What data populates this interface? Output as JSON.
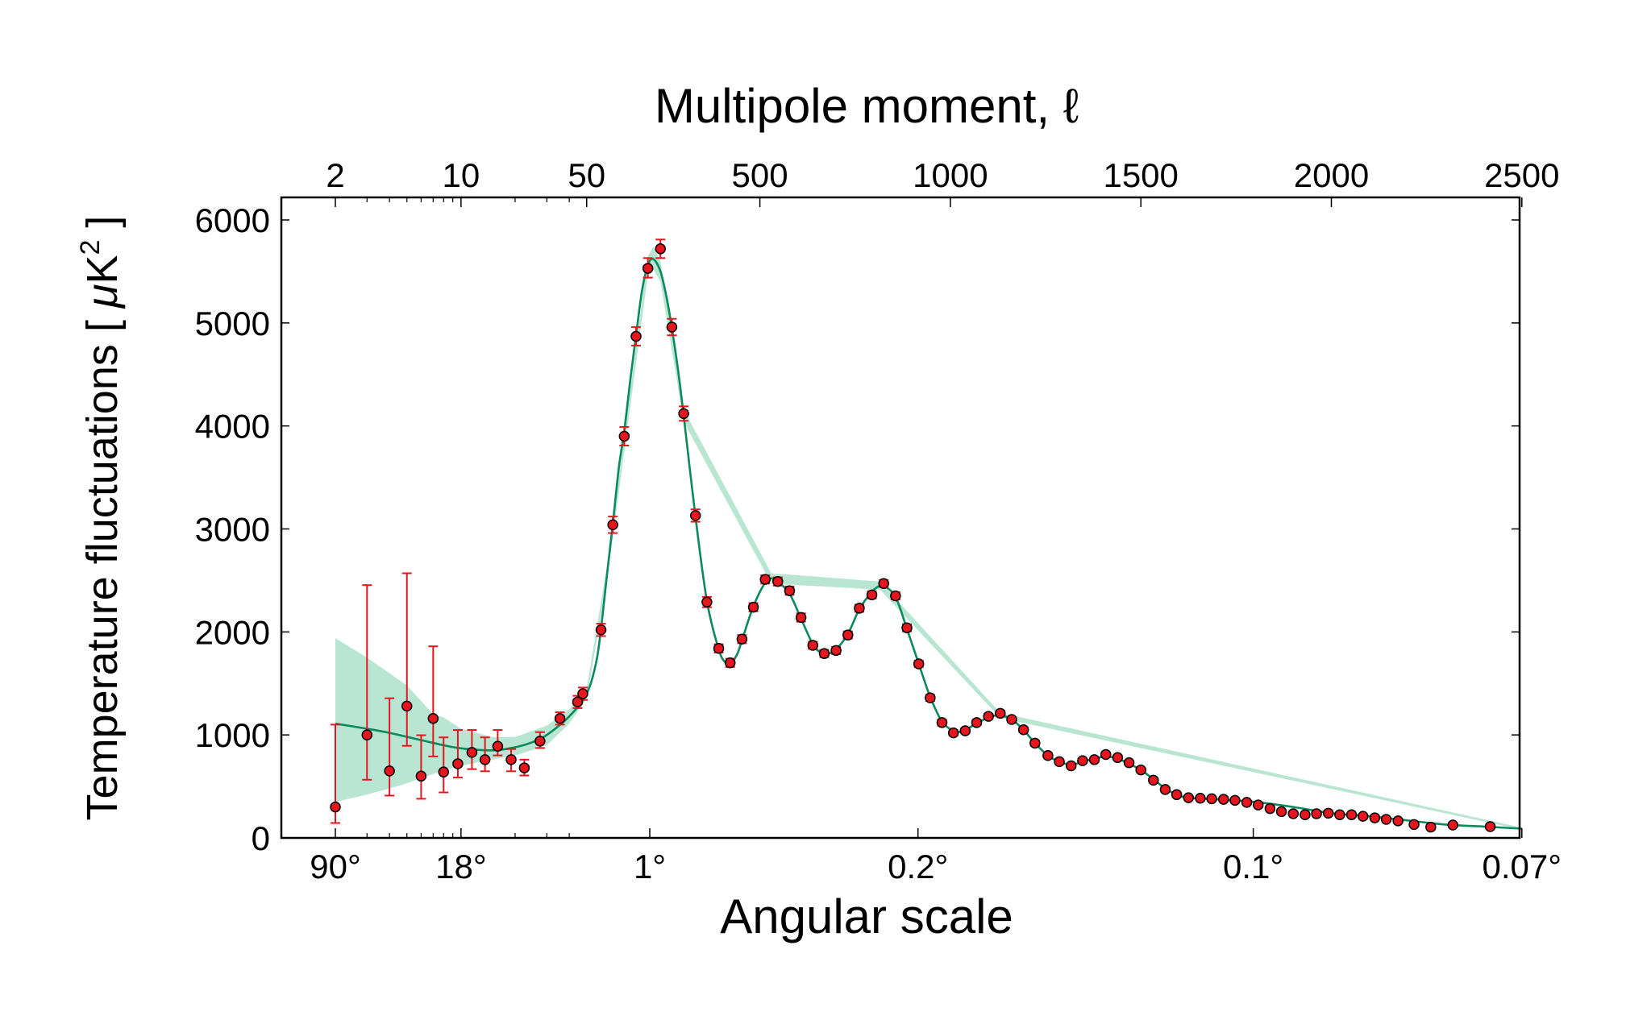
{
  "chart_data": {
    "type": "scatter",
    "title": "",
    "top_axis_label": "Multipole moment, ℓ",
    "xlabel": "Angular scale",
    "ylabel": "Temperature fluctuations [ μK² ]",
    "ylabel_parts": {
      "main": "Temperature fluctuations [ ",
      "mu": "μ",
      "unit": "K",
      "sup": "2",
      "close": " ]"
    },
    "x_scale": "log for ℓ 2–50, linear for ℓ 50–2500",
    "xlim": [
      2,
      2500
    ],
    "ylim": [
      0,
      6000
    ],
    "yticks": [
      0,
      1000,
      2000,
      3000,
      4000,
      5000,
      6000
    ],
    "top_ticks": [
      {
        "l": 2,
        "label": "2"
      },
      {
        "l": 10,
        "label": "10"
      },
      {
        "l": 50,
        "label": "50"
      },
      {
        "l": 500,
        "label": "500"
      },
      {
        "l": 1000,
        "label": "1000"
      },
      {
        "l": 1500,
        "label": "1500"
      },
      {
        "l": 2000,
        "label": "2000"
      },
      {
        "l": 2500,
        "label": "2500"
      }
    ],
    "bottom_ticks": [
      {
        "l": 2,
        "label": "90°"
      },
      {
        "l": 10,
        "label": "18°"
      },
      {
        "l": 211,
        "label": "1°"
      },
      {
        "l": 915,
        "label": "0.2°"
      },
      {
        "l": 1795,
        "label": "0.1°"
      },
      {
        "l": 2500,
        "label": "0.07°"
      }
    ],
    "grid": false,
    "colors": {
      "points": "#e5161e",
      "error_bars": "#e5161e",
      "model": "#0b8a5c",
      "band": "#b9e6d3"
    },
    "points_format": [
      "l",
      "D",
      "err_low",
      "err_high"
    ],
    "points": [
      [
        2,
        300,
        145,
        1100
      ],
      [
        3,
        1000,
        565,
        2455
      ],
      [
        4,
        650,
        411,
        1356
      ],
      [
        5,
        1280,
        894,
        2570
      ],
      [
        6,
        600,
        380,
        997
      ],
      [
        7,
        1160,
        791,
        1860
      ],
      [
        8,
        640,
        442,
        976
      ],
      [
        9.6,
        720,
        586,
        1048
      ],
      [
        11.5,
        830,
        668,
        1048
      ],
      [
        13.6,
        760,
        647,
        976
      ],
      [
        16,
        890,
        801,
        1048
      ],
      [
        19,
        760,
        647,
        863
      ],
      [
        22.5,
        680,
        606,
        760
      ],
      [
        27.5,
        940,
        873,
        1027
      ],
      [
        35.5,
        1160,
        1100,
        1220
      ],
      [
        44.5,
        1320,
        1260,
        1380
      ],
      [
        47.6,
        1400,
        1340,
        1460
      ],
      [
        83,
        2020,
        1960,
        2080
      ],
      [
        114,
        3040,
        2960,
        3120
      ],
      [
        144,
        3900,
        3810,
        3990
      ],
      [
        175,
        4870,
        4780,
        4960
      ],
      [
        206,
        5530,
        5440,
        5630
      ],
      [
        239,
        5720,
        5630,
        5810
      ],
      [
        269,
        4960,
        4880,
        5040
      ],
      [
        300,
        4120,
        4050,
        4190
      ],
      [
        331,
        3130,
        3070,
        3190
      ],
      [
        361,
        2290,
        2240,
        2340
      ],
      [
        392,
        1840,
        1800,
        1880
      ],
      [
        422,
        1700,
        1660,
        1740
      ],
      [
        453,
        1930,
        1890,
        1970
      ],
      [
        483,
        2240,
        2200,
        2280
      ],
      [
        514,
        2510,
        2470,
        2550
      ],
      [
        547,
        2490,
        2450,
        2530
      ],
      [
        578,
        2400,
        2360,
        2440
      ],
      [
        608,
        2140,
        2100,
        2180
      ],
      [
        639,
        1870,
        1835,
        1905
      ],
      [
        669,
        1790,
        1755,
        1825
      ],
      [
        700,
        1820,
        1785,
        1855
      ],
      [
        731,
        1970,
        1935,
        2005
      ],
      [
        761,
        2230,
        2195,
        2265
      ],
      [
        794,
        2360,
        2325,
        2395
      ],
      [
        825,
        2470,
        2435,
        2505
      ],
      [
        856,
        2350,
        2315,
        2385
      ],
      [
        886,
        2040,
        2005,
        2075
      ],
      [
        917,
        1690,
        1660,
        1720
      ],
      [
        947,
        1360,
        1330,
        1390
      ],
      [
        978,
        1120,
        1090,
        1150
      ],
      [
        1008,
        1020,
        995,
        1045
      ],
      [
        1039,
        1040,
        1015,
        1065
      ],
      [
        1069,
        1120,
        1095,
        1145
      ],
      [
        1100,
        1180,
        1155,
        1205
      ],
      [
        1131,
        1210,
        1185,
        1235
      ],
      [
        1161,
        1150,
        1125,
        1175
      ],
      [
        1192,
        1050,
        1025,
        1075
      ],
      [
        1222,
        920,
        895,
        945
      ],
      [
        1256,
        800,
        778,
        822
      ],
      [
        1286,
        740,
        718,
        762
      ],
      [
        1317,
        700,
        678,
        722
      ],
      [
        1347,
        750,
        728,
        772
      ],
      [
        1378,
        760,
        738,
        782
      ],
      [
        1408,
        810,
        788,
        832
      ],
      [
        1439,
        780,
        758,
        802
      ],
      [
        1469,
        730,
        708,
        752
      ],
      [
        1500,
        660,
        638,
        682
      ],
      [
        1533,
        560,
        540,
        580
      ],
      [
        1564,
        470,
        450,
        490
      ],
      [
        1594,
        420,
        400,
        440
      ],
      [
        1625,
        390,
        372,
        408
      ],
      [
        1656,
        385,
        367,
        403
      ],
      [
        1686,
        380,
        362,
        398
      ],
      [
        1717,
        375,
        357,
        393
      ],
      [
        1747,
        365,
        347,
        383
      ],
      [
        1778,
        345,
        327,
        363
      ],
      [
        1808,
        320,
        302,
        338
      ],
      [
        1839,
        285,
        267,
        303
      ],
      [
        1869,
        255,
        237,
        273
      ],
      [
        1900,
        235,
        217,
        253
      ],
      [
        1931,
        225,
        207,
        243
      ],
      [
        1961,
        235,
        217,
        253
      ],
      [
        1992,
        240,
        222,
        258
      ],
      [
        2022,
        225,
        207,
        243
      ],
      [
        2053,
        225,
        207,
        243
      ],
      [
        2083,
        210,
        192,
        228
      ],
      [
        2114,
        195,
        177,
        213
      ],
      [
        2144,
        180,
        162,
        198
      ],
      [
        2175,
        165,
        147,
        183
      ],
      [
        2217,
        130,
        112,
        148
      ],
      [
        2261,
        105,
        87,
        123
      ],
      [
        2319,
        125,
        107,
        143
      ],
      [
        2417,
        110,
        92,
        128
      ]
    ],
    "model": [
      [
        2,
        1110
      ],
      [
        3,
        1060
      ],
      [
        4,
        1020
      ],
      [
        6,
        950
      ],
      [
        8,
        900
      ],
      [
        10,
        870
      ],
      [
        15,
        850
      ],
      [
        20,
        880
      ],
      [
        25,
        930
      ],
      [
        30,
        1000
      ],
      [
        40,
        1180
      ],
      [
        50,
        1400
      ],
      [
        70,
        1700
      ],
      [
        83,
        2030
      ],
      [
        100,
        2600
      ],
      [
        114,
        3050
      ],
      [
        130,
        3600
      ],
      [
        144,
        3950
      ],
      [
        160,
        4450
      ],
      [
        175,
        4880
      ],
      [
        190,
        5300
      ],
      [
        206,
        5560
      ],
      [
        220,
        5620
      ],
      [
        239,
        5500
      ],
      [
        255,
        5250
      ],
      [
        269,
        4950
      ],
      [
        285,
        4550
      ],
      [
        300,
        4100
      ],
      [
        331,
        3120
      ],
      [
        361,
        2300
      ],
      [
        392,
        1830
      ],
      [
        410,
        1700
      ],
      [
        422,
        1690
      ],
      [
        440,
        1780
      ],
      [
        453,
        1920
      ],
      [
        483,
        2250
      ],
      [
        514,
        2480
      ],
      [
        530,
        2520
      ],
      [
        547,
        2490
      ],
      [
        578,
        2370
      ],
      [
        608,
        2130
      ],
      [
        639,
        1880
      ],
      [
        660,
        1800
      ],
      [
        680,
        1790
      ],
      [
        700,
        1830
      ],
      [
        731,
        1980
      ],
      [
        761,
        2220
      ],
      [
        794,
        2390
      ],
      [
        815,
        2450
      ],
      [
        825,
        2450
      ],
      [
        856,
        2340
      ],
      [
        886,
        2030
      ],
      [
        917,
        1690
      ],
      [
        947,
        1370
      ],
      [
        978,
        1130
      ],
      [
        1008,
        1040
      ],
      [
        1025,
        1030
      ],
      [
        1039,
        1050
      ],
      [
        1069,
        1110
      ],
      [
        1100,
        1170
      ],
      [
        1131,
        1190
      ],
      [
        1161,
        1150
      ],
      [
        1192,
        1050
      ],
      [
        1222,
        920
      ],
      [
        1256,
        800
      ],
      [
        1286,
        740
      ],
      [
        1317,
        710
      ],
      [
        1347,
        740
      ],
      [
        1378,
        770
      ],
      [
        1408,
        790
      ],
      [
        1439,
        770
      ],
      [
        1469,
        720
      ],
      [
        1500,
        660
      ],
      [
        1533,
        570
      ],
      [
        1564,
        480
      ],
      [
        1594,
        420
      ],
      [
        1625,
        390
      ],
      [
        1700,
        375
      ],
      [
        1800,
        350
      ],
      [
        1900,
        300
      ],
      [
        2000,
        240
      ],
      [
        2100,
        210
      ],
      [
        2200,
        170
      ],
      [
        2300,
        130
      ],
      [
        2400,
        110
      ],
      [
        2500,
        90
      ]
    ],
    "model_band": [
      [
        2,
        350,
        1940
      ],
      [
        3,
        420,
        1750
      ],
      [
        4,
        480,
        1600
      ],
      [
        5,
        530,
        1480
      ],
      [
        6,
        580,
        1330
      ],
      [
        7,
        620,
        1200
      ],
      [
        8,
        660,
        1170
      ],
      [
        10,
        700,
        1060
      ],
      [
        15,
        760,
        980
      ],
      [
        20,
        800,
        980
      ],
      [
        30,
        900,
        1090
      ],
      [
        40,
        1110,
        1250
      ],
      [
        50,
        1350,
        1450
      ],
      [
        100,
        2530,
        2670
      ],
      [
        206,
        5470,
        5650
      ],
      [
        220,
        5520,
        5740
      ],
      [
        239,
        5400,
        5600
      ],
      [
        300,
        4040,
        4160
      ],
      [
        530,
        2470,
        2570
      ],
      [
        815,
        2410,
        2490
      ],
      [
        1131,
        1165,
        1215
      ],
      [
        2500,
        80,
        100
      ]
    ]
  }
}
